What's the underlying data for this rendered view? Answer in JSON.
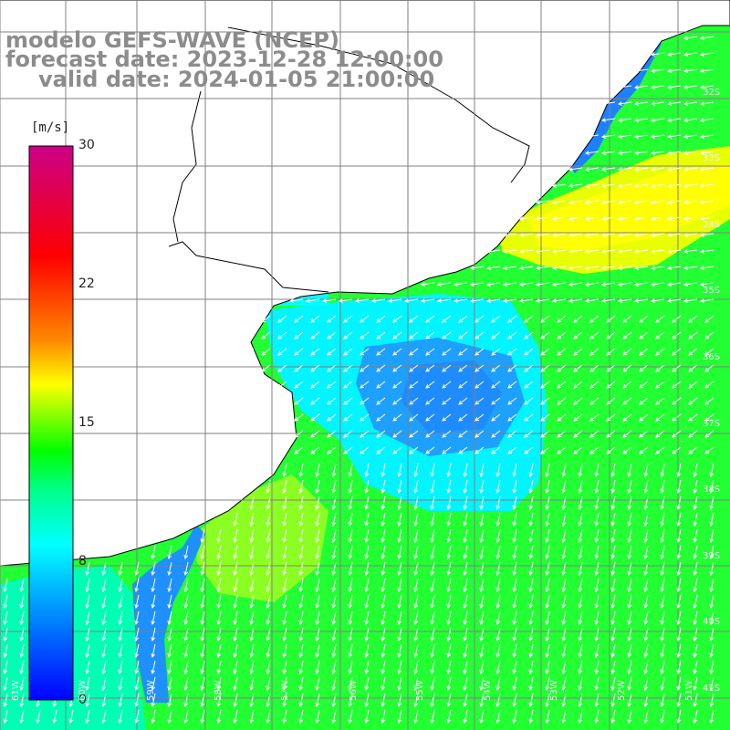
{
  "title": {
    "model": "modelo GEFS-WAVE (NCEP)",
    "forecast": "forecast date: 2023-12-28 12:00:00",
    "valid": "valid date: 2024-01-05 21:00:00"
  },
  "colorbar": {
    "unit": "[m/s]",
    "ticks": [
      "30",
      "22",
      "15",
      "8",
      "0"
    ],
    "colors": [
      "#cc0088",
      "#ff0000",
      "#ff8800",
      "#ffff00",
      "#00ff00",
      "#00ffff",
      "#0000ff"
    ]
  },
  "map": {
    "lat_labels": [
      "32S",
      "33S",
      "34S",
      "35S",
      "36S",
      "37S",
      "38S",
      "39S",
      "40S",
      "41S"
    ],
    "lon_labels": [
      "61W",
      "60W",
      "59W",
      "58W",
      "57W",
      "56W",
      "55W",
      "54W",
      "53W",
      "52W",
      "51W"
    ],
    "field_colors": {
      "blue": "#1e8cff",
      "cyan": "#00f5ff",
      "teal": "#00ffb4",
      "green": "#22ff33",
      "lime": "#8cff22",
      "yellow": "#ffff00",
      "land": "#ffffff",
      "grid": "#808080",
      "arrows": "#ffffff"
    }
  }
}
